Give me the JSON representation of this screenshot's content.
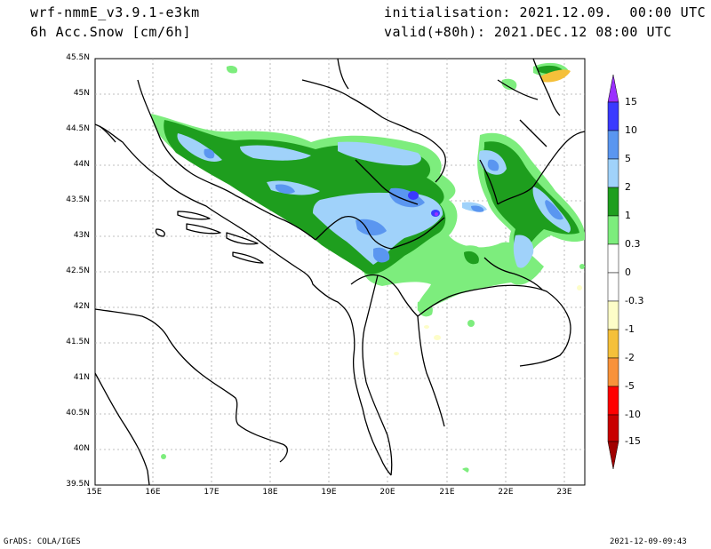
{
  "header": {
    "model": "wrf-nmmE_v3.9.1-e3km",
    "variable": "6h Acc.Snow [cm/6h]",
    "init": "initialisation: 2021.12.09.  00:00 UTC",
    "valid": "valid(+80h): 2021.DEC.12 08:00 UTC"
  },
  "footer": {
    "left": "GrADS: COLA/IGES",
    "right": "2021-12-09-09:43"
  },
  "axes": {
    "lat_labels": [
      "45.5N",
      "45N",
      "44.5N",
      "44N",
      "43.5N",
      "43N",
      "42.5N",
      "42N",
      "41.5N",
      "41N",
      "40.5N",
      "40N",
      "39.5N"
    ],
    "lon_labels": [
      "15E",
      "16E",
      "17E",
      "18E",
      "19E",
      "20E",
      "21E",
      "22E",
      "23E"
    ]
  },
  "colorbar": {
    "labels": [
      "15",
      "10",
      "5",
      "2",
      "1",
      "0.3",
      "0",
      "-0.3",
      "-1",
      "-2",
      "-5",
      "-10",
      "-15"
    ],
    "colors": [
      "#9b30ff",
      "#3a3aff",
      "#5a96f0",
      "#a0d2fa",
      "#1e9e1e",
      "#7ded7d",
      "#ffffff",
      "#fdfdc8",
      "#f5c03a",
      "#f8923a",
      "#ff0000",
      "#c80000",
      "#a00000",
      "#780000"
    ]
  }
}
